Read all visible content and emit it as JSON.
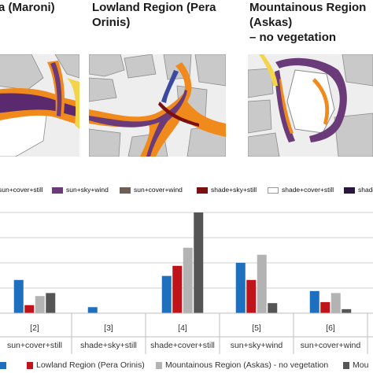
{
  "titles": {
    "left": [
      "a (Maroni)"
    ],
    "middle": [
      "Lowland Region (Pera",
      "Orinis)"
    ],
    "right": [
      "Mountainous Region",
      "(Askas)",
      "– no vegetation"
    ]
  },
  "map_legend": [
    {
      "label": "sun+cover+still",
      "color": "#f08a1c"
    },
    {
      "label": "sun+sky+wind",
      "color": "#6b3a78"
    },
    {
      "label": "sun+cover+wind",
      "color": "#6e5f56"
    },
    {
      "label": "shade+sky+still",
      "color": "#7b1010"
    },
    {
      "label": "shade+cover+still",
      "color": "#ffffff"
    },
    {
      "label": "shade",
      "color": "#2a1540"
    }
  ],
  "colors": {
    "series_blue": "#1f6fbf",
    "series_red": "#c0141c",
    "series_gray": "#b3b3b3",
    "series_dark": "#555555",
    "grid": "#d0d0d0",
    "map_bg": "#eeeeee",
    "building_fill": "#c9c9c9",
    "building_stroke": "#8c8c8c"
  },
  "chart_data": {
    "type": "bar",
    "categories": [
      {
        "index": "[2]",
        "label": "sun+cover+still"
      },
      {
        "index": "[3]",
        "label": "shade+sky+still"
      },
      {
        "index": "[4]",
        "label": "shade+cover+still"
      },
      {
        "index": "[5]",
        "label": "sun+sky+wind"
      },
      {
        "index": "[6]",
        "label": "sun+cover+wind"
      }
    ],
    "series": [
      {
        "name": "",
        "values": [
          0.33,
          0.06,
          0.37,
          0.5,
          0.22
        ]
      },
      {
        "name": "Lowland Region (Pera Orinis)",
        "values": [
          0.08,
          0.0,
          0.47,
          0.33,
          0.11
        ]
      },
      {
        "name": "Mountainous Region (Askas) - no vegetation",
        "values": [
          0.17,
          0.0,
          0.65,
          0.58,
          0.2
        ]
      },
      {
        "name": "Mou",
        "values": [
          0.2,
          0.0,
          1.0,
          0.1,
          0.04
        ]
      }
    ],
    "ylim": [
      0,
      1.0
    ],
    "grid": true,
    "legend": "bottom",
    "title": "",
    "xlabel": "",
    "ylabel": ""
  }
}
